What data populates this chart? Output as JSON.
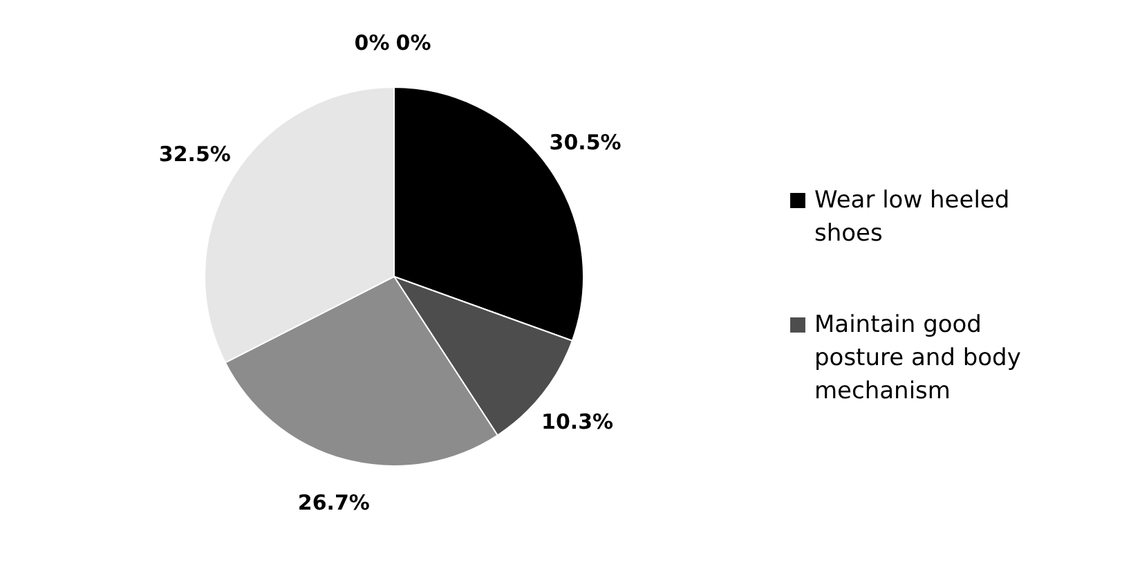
{
  "chart_data": {
    "type": "pie",
    "categories": [
      "Wear low heeled shoes",
      "Maintain good posture and body mechanism",
      null,
      null,
      null,
      null
    ],
    "values": [
      30.5,
      10.3,
      26.7,
      32.5,
      0,
      0
    ],
    "colors": [
      "#000000",
      "#4d4d4d",
      "#8c8c8c",
      "#e6e6e6",
      "#bfbfbf",
      "#666666"
    ],
    "value_labels": [
      "30.5%",
      "10.3%",
      "26.7%",
      "32.5%",
      "0%",
      "0%"
    ],
    "legend": "right"
  }
}
